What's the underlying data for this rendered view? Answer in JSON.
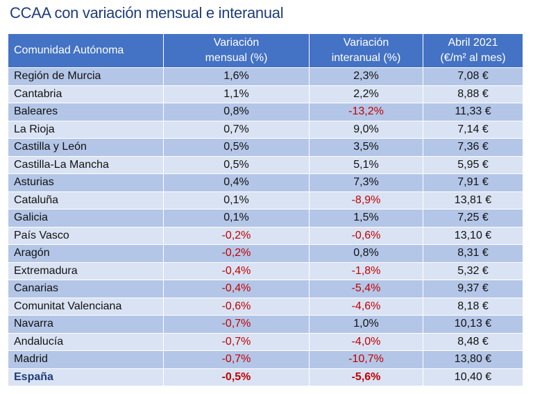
{
  "title": "CCAA con variación mensual e interanual",
  "headers": {
    "region": "Comunidad Autónoma",
    "monthly_1": "Variación",
    "monthly_2": "mensual (%)",
    "annual_1": "Variación",
    "annual_2": "interanual (%)",
    "price_1": "Abril 2021",
    "price_2": "(€/m² al mes)"
  },
  "rows": [
    {
      "region": "Región de Murcia",
      "monthly": "1,6%",
      "annual": "2,3%",
      "price": "7,08 €"
    },
    {
      "region": "Cantabria",
      "monthly": "1,1%",
      "annual": "2,2%",
      "price": "8,88 €"
    },
    {
      "region": "Baleares",
      "monthly": "0,8%",
      "annual": "-13,2%",
      "price": "11,33 €"
    },
    {
      "region": "La Rioja",
      "monthly": "0,7%",
      "annual": "9,0%",
      "price": "7,14 €"
    },
    {
      "region": "Castilla y León",
      "monthly": "0,5%",
      "annual": "3,5%",
      "price": "7,36 €"
    },
    {
      "region": "Castilla-La Mancha",
      "monthly": "0,5%",
      "annual": "5,1%",
      "price": "5,95 €"
    },
    {
      "region": "Asturias",
      "monthly": "0,4%",
      "annual": "7,3%",
      "price": "7,91 €"
    },
    {
      "region": "Cataluña",
      "monthly": "0,1%",
      "annual": "-8,9%",
      "price": "13,81 €"
    },
    {
      "region": "Galicia",
      "monthly": "0,1%",
      "annual": "1,5%",
      "price": "7,25 €"
    },
    {
      "region": "País Vasco",
      "monthly": "-0,2%",
      "annual": "-0,6%",
      "price": "13,10 €"
    },
    {
      "region": "Aragón",
      "monthly": "-0,2%",
      "annual": "0,8%",
      "price": "8,31 €"
    },
    {
      "region": "Extremadura",
      "monthly": "-0,4%",
      "annual": "-1,8%",
      "price": "5,32 €"
    },
    {
      "region": "Canarias",
      "monthly": "-0,4%",
      "annual": "-5,4%",
      "price": "9,37 €"
    },
    {
      "region": "Comunitat Valenciana",
      "monthly": "-0,6%",
      "annual": "-4,6%",
      "price": "8,18 €"
    },
    {
      "region": "Navarra",
      "monthly": "-0,7%",
      "annual": "1,0%",
      "price": "10,13 €"
    },
    {
      "region": "Andalucía",
      "monthly": "-0,7%",
      "annual": "-4,0%",
      "price": "8,48 €"
    },
    {
      "region": "Madrid",
      "monthly": "-0,7%",
      "annual": "-10,7%",
      "price": "13,80 €"
    }
  ],
  "total": {
    "region": "España",
    "monthly": "-0,5%",
    "annual": "-5,6%",
    "price": "10,40 €"
  },
  "colors": {
    "title": "#1f3c7a",
    "header_bg": "#4472c4",
    "row_dark": "#b4c6e7",
    "row_light": "#dae3f3",
    "negative": "#c00000"
  }
}
